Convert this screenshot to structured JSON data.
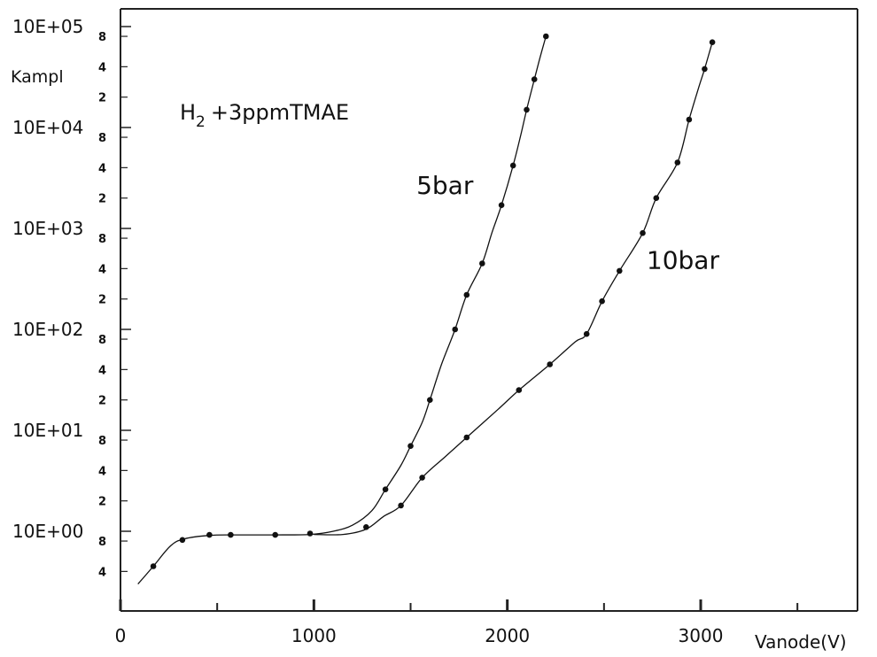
{
  "chart_data": {
    "type": "scatter",
    "title": "",
    "xlabel": "Vanode(V)",
    "ylabel": "Kampl",
    "y_scale": "log",
    "xlim": [
      0,
      3800
    ],
    "ylim": [
      0.2,
      100000
    ],
    "x_ticks": [
      "0",
      "1000",
      "2000",
      "3000"
    ],
    "y_major_ticks": [
      "10E+00",
      "10E+01",
      "10E+02",
      "10E+03",
      "10E+04",
      "10E+05"
    ],
    "y_minor_tick_labels": [
      "2",
      "4",
      "8"
    ],
    "annotation_gas_formula": "H",
    "annotation_gas_subscript": "2",
    "annotation_gas_rest": "+3ppmTMAE",
    "series": [
      {
        "name": "5bar",
        "points": [
          [
            170,
            0.45
          ],
          [
            320,
            0.82
          ],
          [
            460,
            0.92
          ],
          [
            570,
            0.92
          ],
          [
            800,
            0.92
          ],
          [
            980,
            0.95
          ],
          [
            1370,
            2.6
          ],
          [
            1500,
            7.0
          ],
          [
            1600,
            20
          ],
          [
            1730,
            100
          ],
          [
            1790,
            220
          ],
          [
            1870,
            450
          ],
          [
            1970,
            1700
          ],
          [
            2030,
            4200
          ],
          [
            2100,
            15000
          ],
          [
            2140,
            30000
          ],
          [
            2200,
            80000
          ]
        ],
        "curve": [
          [
            90,
            0.3
          ],
          [
            170,
            0.45
          ],
          [
            260,
            0.72
          ],
          [
            330,
            0.84
          ],
          [
            460,
            0.91
          ],
          [
            600,
            0.92
          ],
          [
            800,
            0.92
          ],
          [
            980,
            0.93
          ],
          [
            1100,
            1.0
          ],
          [
            1200,
            1.15
          ],
          [
            1300,
            1.6
          ],
          [
            1370,
            2.6
          ],
          [
            1450,
            4.5
          ],
          [
            1500,
            7.0
          ],
          [
            1560,
            12
          ],
          [
            1600,
            20
          ],
          [
            1660,
            45
          ],
          [
            1730,
            100
          ],
          [
            1790,
            220
          ],
          [
            1870,
            450
          ],
          [
            1920,
            900
          ],
          [
            1970,
            1700
          ],
          [
            2030,
            4200
          ],
          [
            2070,
            8500
          ],
          [
            2100,
            15000
          ],
          [
            2140,
            30000
          ],
          [
            2170,
            50000
          ],
          [
            2200,
            80000
          ]
        ]
      },
      {
        "name": "10bar",
        "points": [
          [
            1270,
            1.1
          ],
          [
            1450,
            1.8
          ],
          [
            1560,
            3.4
          ],
          [
            1790,
            8.5
          ],
          [
            2060,
            25
          ],
          [
            2220,
            45
          ],
          [
            2410,
            90
          ],
          [
            2490,
            190
          ],
          [
            2580,
            380
          ],
          [
            2700,
            900
          ],
          [
            2770,
            2000
          ],
          [
            2880,
            4500
          ],
          [
            2940,
            12000
          ],
          [
            3020,
            38000
          ],
          [
            3060,
            70000
          ]
        ],
        "curve": [
          [
            1000,
            0.93
          ],
          [
            1150,
            0.93
          ],
          [
            1270,
            1.05
          ],
          [
            1360,
            1.4
          ],
          [
            1450,
            1.8
          ],
          [
            1560,
            3.4
          ],
          [
            1680,
            5.5
          ],
          [
            1790,
            8.5
          ],
          [
            1950,
            16
          ],
          [
            2060,
            25
          ],
          [
            2220,
            45
          ],
          [
            2350,
            75
          ],
          [
            2410,
            90
          ],
          [
            2490,
            190
          ],
          [
            2580,
            380
          ],
          [
            2700,
            900
          ],
          [
            2770,
            2000
          ],
          [
            2880,
            4500
          ],
          [
            2940,
            12000
          ],
          [
            2990,
            25000
          ],
          [
            3020,
            38000
          ],
          [
            3060,
            70000
          ]
        ]
      }
    ],
    "series_labels": [
      {
        "text": "5bar",
        "x": 1530,
        "y": 2200
      },
      {
        "text": "10bar",
        "x": 2720,
        "y": 400
      }
    ],
    "grid": false,
    "legend": "none"
  }
}
